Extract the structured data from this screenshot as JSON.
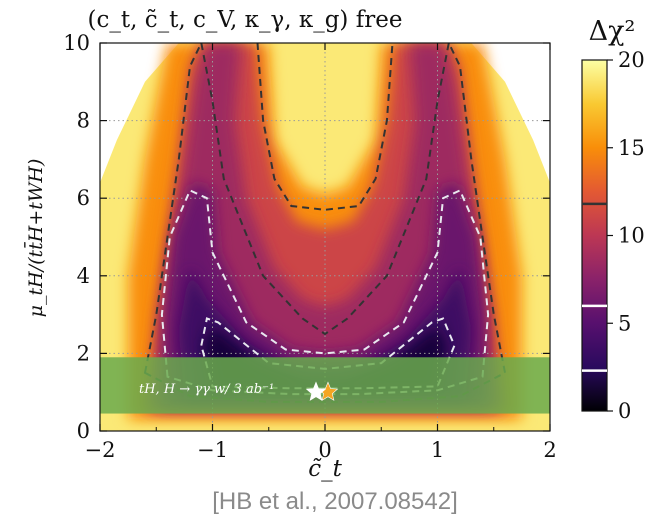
{
  "chart_data": {
    "type": "heatmap",
    "title": "(c_t, c̃_t, c_V, κ_γ, κ_g) free",
    "xlabel": "c̃_t",
    "ylabel": "μ_tH/(tt̄H+tWH)",
    "xlim": [
      -2,
      2
    ],
    "ylim": [
      0,
      10
    ],
    "xticks": [
      "−2",
      "−1",
      "0",
      "1",
      "2"
    ],
    "yticks": [
      "0",
      "2",
      "4",
      "6",
      "8",
      "10"
    ],
    "grid": true,
    "colorbar": {
      "label": "Δχ²",
      "range": [
        0,
        20
      ],
      "ticks": [
        "0",
        "5",
        "10",
        "15",
        "20"
      ],
      "contour_markers": [
        2.3,
        5.99,
        11.8
      ],
      "colors": [
        "#000004",
        "#2a0a5e",
        "#57106e",
        "#8a226a",
        "#bc3754",
        "#e35933",
        "#f98e09",
        "#f9c932",
        "#fcffa4"
      ]
    },
    "contours": [
      {
        "level": "Δχ²=5.99",
        "style": "white-dashed",
        "points": [
          [
            -1.4,
            1.4
          ],
          [
            -1.45,
            3.0
          ],
          [
            -1.38,
            5.0
          ],
          [
            -1.2,
            6.2
          ],
          [
            -1.05,
            6.0
          ],
          [
            -1.0,
            4.6
          ],
          [
            -0.7,
            2.8
          ],
          [
            -0.35,
            2.1
          ],
          [
            0,
            2.0
          ],
          [
            0.35,
            2.1
          ],
          [
            0.7,
            2.8
          ],
          [
            1.0,
            4.6
          ],
          [
            1.05,
            6.0
          ],
          [
            1.2,
            6.2
          ],
          [
            1.38,
            5.0
          ],
          [
            1.45,
            3.0
          ],
          [
            1.4,
            1.4
          ],
          [
            1.0,
            1.05
          ],
          [
            0.3,
            0.95
          ],
          [
            -0.3,
            0.95
          ],
          [
            -1.0,
            1.05
          ]
        ]
      },
      {
        "level": "Δχ²=11.8",
        "style": "dark-dashed",
        "points": [
          [
            -1.6,
            1.5
          ],
          [
            -1.5,
            3.0
          ],
          [
            -1.4,
            5.0
          ],
          [
            -1.3,
            7.0
          ],
          [
            -1.2,
            9.4
          ],
          [
            -1.1,
            10.0
          ],
          [
            -1.0,
            8.5
          ],
          [
            -0.9,
            6.5
          ],
          [
            -0.55,
            4.0
          ],
          [
            -0.2,
            2.9
          ],
          [
            0,
            2.5
          ],
          [
            0.2,
            2.9
          ],
          [
            0.55,
            4.0
          ],
          [
            0.9,
            6.5
          ],
          [
            1.0,
            8.5
          ],
          [
            1.1,
            10.0
          ],
          [
            1.2,
            9.4
          ],
          [
            1.3,
            7.0
          ],
          [
            1.4,
            5.0
          ],
          [
            1.5,
            3.0
          ],
          [
            1.6,
            1.5
          ],
          [
            1.2,
            0.9
          ],
          [
            0.5,
            0.75
          ],
          [
            -0.5,
            0.75
          ],
          [
            -1.2,
            0.9
          ]
        ]
      },
      {
        "level": "Δχ²=11.8 inner",
        "style": "dark-dashed",
        "points": [
          [
            -0.6,
            10.0
          ],
          [
            -0.55,
            8.0
          ],
          [
            -0.45,
            6.5
          ],
          [
            -0.3,
            5.8
          ],
          [
            0,
            5.7
          ],
          [
            0.3,
            5.8
          ],
          [
            0.45,
            6.5
          ],
          [
            0.55,
            8.0
          ],
          [
            0.6,
            10.0
          ]
        ]
      },
      {
        "level": "Δχ²=2.3",
        "style": "white-dashed",
        "points": [
          [
            -1.1,
            2.2
          ],
          [
            -1.05,
            2.9
          ],
          [
            -0.95,
            2.8
          ],
          [
            -0.5,
            1.75
          ],
          [
            0,
            1.6
          ],
          [
            0.5,
            1.75
          ],
          [
            0.95,
            2.8
          ],
          [
            1.05,
            2.9
          ],
          [
            1.15,
            2.2
          ],
          [
            1.0,
            1.15
          ],
          [
            0.3,
            1.1
          ],
          [
            -0.3,
            1.1
          ],
          [
            -1.0,
            1.15
          ]
        ]
      }
    ],
    "projection_band": {
      "label": "tH, H → γγ w/ 3 ab⁻¹",
      "y_range": [
        0.45,
        1.9
      ],
      "x_range": [
        -2,
        2
      ],
      "color": "#6aaa4e"
    },
    "best_fit": {
      "x": 0,
      "y": 1,
      "marker": "orange-star"
    },
    "sm_point": {
      "x": -0.08,
      "y": 1,
      "marker": "white-star"
    }
  },
  "citation": "[HB et al., 2007.08542]"
}
